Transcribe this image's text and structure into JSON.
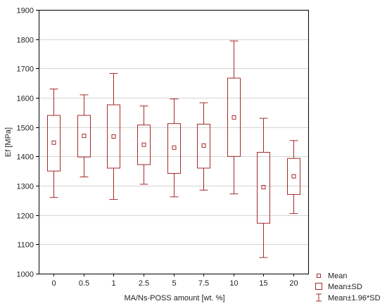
{
  "chart_data": {
    "type": "box",
    "xlabel": "MA/Ns-POSS amount [wt. %]",
    "ylabel": "Ef [MPa]",
    "ylim": [
      1000,
      1900
    ],
    "yticks": [
      1000,
      1100,
      1200,
      1300,
      1400,
      1500,
      1600,
      1700,
      1800,
      1900
    ],
    "grid": true,
    "legend_position": "bottom-right",
    "color": "#a52a2a",
    "categories": [
      "0",
      "0.5",
      "1",
      "2.5",
      "5",
      "7.5",
      "10",
      "15",
      "20"
    ],
    "mean": [
      1447,
      1470,
      1468,
      1440,
      1430,
      1437,
      1533,
      1295,
      1332
    ],
    "sd_low": [
      1350,
      1398,
      1360,
      1372,
      1342,
      1360,
      1400,
      1172,
      1270
    ],
    "sd_high": [
      1540,
      1540,
      1576,
      1507,
      1512,
      1510,
      1667,
      1414,
      1393
    ],
    "ci_low": [
      1260,
      1330,
      1253,
      1305,
      1262,
      1285,
      1272,
      1055,
      1205
    ],
    "ci_high": [
      1630,
      1610,
      1683,
      1572,
      1596,
      1583,
      1794,
      1530,
      1454
    ],
    "legend": [
      "Mean",
      "Mean±SD",
      "Mean±1.96*SD"
    ]
  }
}
